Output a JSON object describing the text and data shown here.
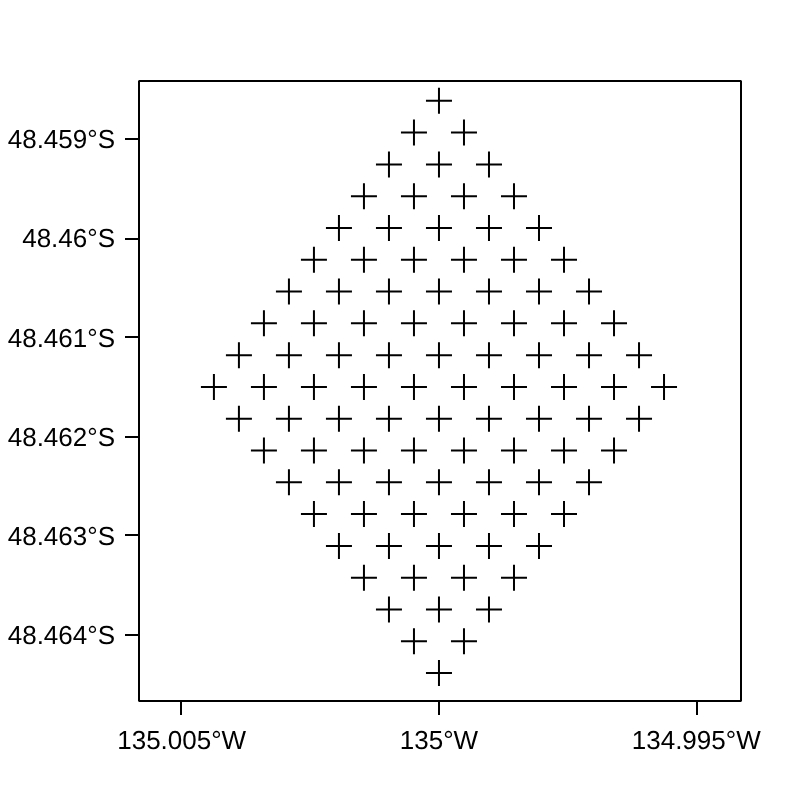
{
  "chart_data": {
    "type": "scatter",
    "marker": "cross",
    "grid": false,
    "xlim": [
      -135.00583,
      -134.99413
    ],
    "ylim": [
      -48.46467,
      -48.45841
    ],
    "xticks": [
      {
        "value": -135.005,
        "label": "135.005°W"
      },
      {
        "value": -135.0,
        "label": "135°W"
      },
      {
        "value": -134.995,
        "label": "134.995°W"
      }
    ],
    "yticks": [
      {
        "value": -48.464,
        "label": "48.464°S"
      },
      {
        "value": -48.463,
        "label": "48.463°S"
      },
      {
        "value": -48.462,
        "label": "48.462°S"
      },
      {
        "value": -48.461,
        "label": "48.461°S"
      },
      {
        "value": -48.46,
        "label": "48.46°S"
      },
      {
        "value": -48.459,
        "label": "48.459°S"
      }
    ],
    "series": [
      {
        "color": "#000000",
        "x": [
          -135,
          -135.000486,
          -134.999514,
          -135.000972,
          -135,
          -134.999028,
          -135.001458,
          -135.000486,
          -134.999514,
          -134.998542,
          -135.001944,
          -135.000972,
          -135,
          -134.999028,
          -134.998056,
          -135.00243,
          -135.001458,
          -135.000486,
          -134.999514,
          -134.998542,
          -134.99757,
          -135.002916,
          -135.001944,
          -135.000972,
          -135,
          -134.999028,
          -134.998056,
          -134.997084,
          -135.003402,
          -135.00243,
          -135.001458,
          -135.000486,
          -134.999514,
          -134.998542,
          -134.99757,
          -134.996598,
          -135.003888,
          -135.002916,
          -135.001944,
          -135.000972,
          -135,
          -134.999028,
          -134.998056,
          -134.997084,
          -134.996112,
          -135.004374,
          -135.003402,
          -135.00243,
          -135.001458,
          -135.000486,
          -134.999514,
          -134.998542,
          -134.99757,
          -134.996598,
          -134.995626,
          -135.003888,
          -135.002916,
          -135.001944,
          -135.000972,
          -135,
          -134.999028,
          -134.998056,
          -134.997084,
          -134.996112,
          -135.003402,
          -135.00243,
          -135.001458,
          -135.000486,
          -134.999514,
          -134.998542,
          -134.99757,
          -134.996598,
          -135.002916,
          -135.001944,
          -135.000972,
          -135,
          -134.999028,
          -134.998056,
          -134.997084,
          -135.00243,
          -135.001458,
          -135.000486,
          -134.999514,
          -134.998542,
          -134.99757,
          -135.001944,
          -135.000972,
          -135,
          -134.999028,
          -134.998056,
          -135.001458,
          -135.000486,
          -134.999514,
          -134.998542,
          -135.000972,
          -135,
          -134.999028,
          -135.000486,
          -134.999514,
          -135
        ],
        "values": [
          -48.45861,
          -48.458931,
          -48.458931,
          -48.459252,
          -48.459252,
          -48.459252,
          -48.459573,
          -48.459573,
          -48.459573,
          -48.459573,
          -48.459894,
          -48.459894,
          -48.459894,
          -48.459894,
          -48.459894,
          -48.460215,
          -48.460215,
          -48.460215,
          -48.460215,
          -48.460215,
          -48.460215,
          -48.460536,
          -48.460536,
          -48.460536,
          -48.460536,
          -48.460536,
          -48.460536,
          -48.460536,
          -48.460857,
          -48.460857,
          -48.460857,
          -48.460857,
          -48.460857,
          -48.460857,
          -48.460857,
          -48.460857,
          -48.461178,
          -48.461178,
          -48.461178,
          -48.461178,
          -48.461178,
          -48.461178,
          -48.461178,
          -48.461178,
          -48.461178,
          -48.461499,
          -48.461499,
          -48.461499,
          -48.461499,
          -48.461499,
          -48.461499,
          -48.461499,
          -48.461499,
          -48.461499,
          -48.461499,
          -48.46182,
          -48.46182,
          -48.46182,
          -48.46182,
          -48.46182,
          -48.46182,
          -48.46182,
          -48.46182,
          -48.46182,
          -48.462141,
          -48.462141,
          -48.462141,
          -48.462141,
          -48.462141,
          -48.462141,
          -48.462141,
          -48.462141,
          -48.462462,
          -48.462462,
          -48.462462,
          -48.462462,
          -48.462462,
          -48.462462,
          -48.462462,
          -48.462783,
          -48.462783,
          -48.462783,
          -48.462783,
          -48.462783,
          -48.462783,
          -48.463104,
          -48.463104,
          -48.463104,
          -48.463104,
          -48.463104,
          -48.463425,
          -48.463425,
          -48.463425,
          -48.463425,
          -48.463746,
          -48.463746,
          -48.463746,
          -48.464067,
          -48.464067,
          -48.464388
        ]
      }
    ]
  }
}
